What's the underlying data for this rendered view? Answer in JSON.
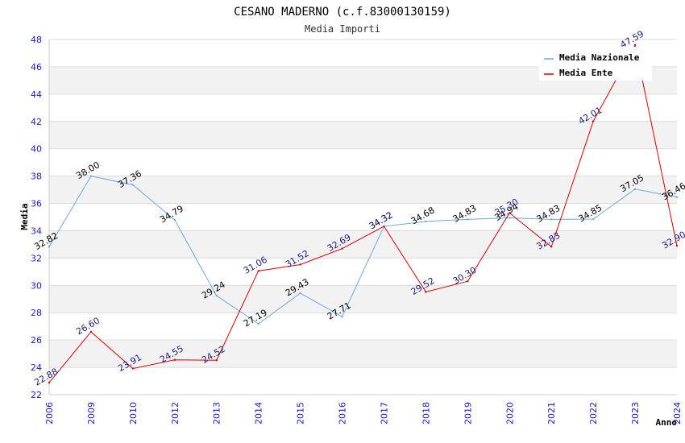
{
  "chart_data": {
    "type": "line",
    "title": "CESANO MADERNO (c.f.83000130159)",
    "subtitle": "Media Importi",
    "xlabel": "Anno",
    "ylabel": "Media",
    "ylim": [
      22,
      48
    ],
    "y_ticks": [
      "22",
      "24",
      "26",
      "28",
      "30",
      "32",
      "34",
      "36",
      "38",
      "40",
      "42",
      "44",
      "46",
      "48"
    ],
    "categories": [
      "2006",
      "2009",
      "2010",
      "2012",
      "2013",
      "2014",
      "2015",
      "2016",
      "2017",
      "2018",
      "2019",
      "2020",
      "2021",
      "2022",
      "2023",
      "2024"
    ],
    "legend_position": "top-right",
    "series": [
      {
        "name": "Media Nazionale",
        "color": "#6aa8e0",
        "values": [
          32.82,
          38.0,
          37.36,
          34.79,
          29.24,
          27.19,
          29.43,
          27.71,
          34.32,
          34.68,
          34.83,
          34.94,
          34.83,
          34.85,
          37.05,
          36.46
        ],
        "labels": [
          "32.82",
          "38.00",
          "37.36",
          "34.79",
          "29.24",
          "27.19",
          "29.43",
          "27.71",
          "34.32",
          "34.68",
          "34.83",
          "34.94",
          "34.83",
          "34.85",
          "37.05",
          "36.46"
        ]
      },
      {
        "name": "Media Ente",
        "color": "#dd0000",
        "values": [
          22.88,
          26.6,
          23.91,
          24.55,
          24.52,
          31.06,
          31.52,
          32.69,
          34.32,
          29.52,
          30.3,
          35.3,
          32.83,
          42.01,
          47.59,
          32.9
        ],
        "labels": [
          "22.88",
          "26.60",
          "23.91",
          "24.55",
          "24.52",
          "31.06",
          "31.52",
          "32.69",
          "34.32",
          "29.52",
          "30.30",
          "35.30",
          "32.83",
          "42.01",
          "47.59",
          "32.90"
        ]
      }
    ]
  }
}
